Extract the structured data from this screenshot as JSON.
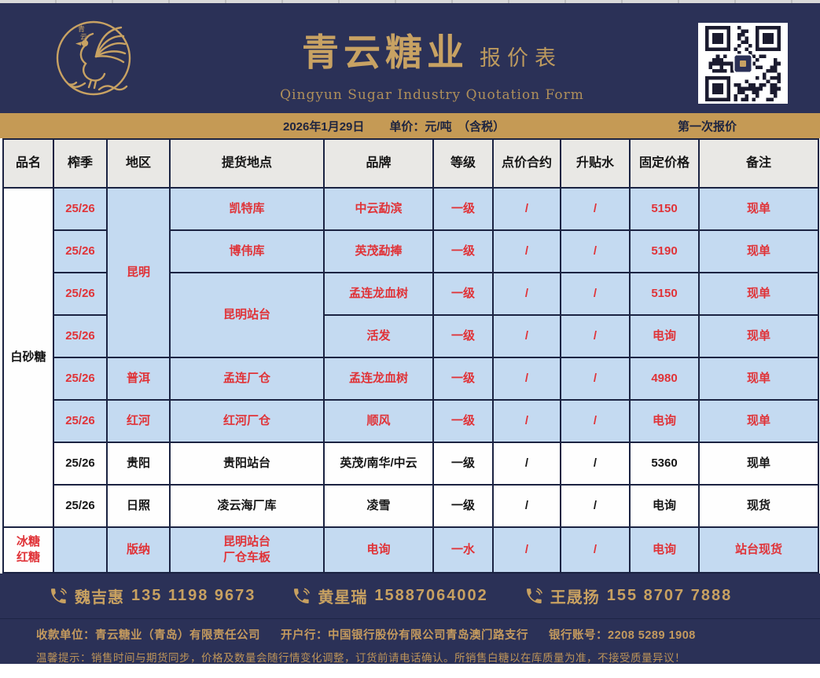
{
  "brand": {
    "logo_chars_top": "青",
    "logo_chars_bottom": "云",
    "title": "青云糖业",
    "title_suffix": "报价表",
    "subtitle": "Qingyun Sugar Industry Quotation Form",
    "accent_gold": "#c8a263",
    "navy": "#2b3157",
    "highlight_blue": "#c4daf1",
    "highlight_red": "#e03338"
  },
  "info_bar": {
    "date": "2026年1月29日",
    "unit": "单价：元/吨　（含税）",
    "round": "第一次报价"
  },
  "table": {
    "columns": [
      "品名",
      "榨季",
      "地区",
      "提货地点",
      "品牌",
      "等级",
      "点价合约",
      "升贴水",
      "固定价格",
      "备注"
    ],
    "rows": [
      {
        "cells": [
          {
            "text": "白砂糖",
            "rs": 8,
            "style": "name"
          },
          {
            "text": "25/26",
            "style": "hl"
          },
          {
            "text": "昆明",
            "rs": 4,
            "style": "hl"
          },
          {
            "text": "凯特库",
            "style": "hl"
          },
          {
            "text": "中云勐滨",
            "style": "hl"
          },
          {
            "text": "一级",
            "style": "hl"
          },
          {
            "text": "/",
            "style": "hl"
          },
          {
            "text": "/",
            "style": "hl"
          },
          {
            "text": "5150",
            "style": "hl"
          },
          {
            "text": "现单",
            "style": "hl"
          }
        ]
      },
      {
        "cells": [
          {
            "text": "25/26",
            "style": "hl"
          },
          {
            "text": "博伟库",
            "style": "hl"
          },
          {
            "text": "英茂勐捧",
            "style": "hl"
          },
          {
            "text": "一级",
            "style": "hl"
          },
          {
            "text": "/",
            "style": "hl"
          },
          {
            "text": "/",
            "style": "hl"
          },
          {
            "text": "5190",
            "style": "hl"
          },
          {
            "text": "现单",
            "style": "hl"
          }
        ]
      },
      {
        "cells": [
          {
            "text": "25/26",
            "style": "hl"
          },
          {
            "text": "昆明站台",
            "rs": 2,
            "style": "hl"
          },
          {
            "text": "孟连龙血树",
            "style": "hl"
          },
          {
            "text": "一级",
            "style": "hl"
          },
          {
            "text": "/",
            "style": "hl"
          },
          {
            "text": "/",
            "style": "hl"
          },
          {
            "text": "5150",
            "style": "hl"
          },
          {
            "text": "现单",
            "style": "hl"
          }
        ]
      },
      {
        "cells": [
          {
            "text": "25/26",
            "style": "hl"
          },
          {
            "text": "活发",
            "style": "hl"
          },
          {
            "text": "一级",
            "style": "hl"
          },
          {
            "text": "/",
            "style": "hl"
          },
          {
            "text": "/",
            "style": "hl"
          },
          {
            "text": "电询",
            "style": "hl"
          },
          {
            "text": "现单",
            "style": "hl"
          }
        ]
      },
      {
        "cells": [
          {
            "text": "25/26",
            "style": "hl"
          },
          {
            "text": "普洱",
            "style": "hl"
          },
          {
            "text": "孟连厂仓",
            "style": "hl"
          },
          {
            "text": "孟连龙血树",
            "style": "hl"
          },
          {
            "text": "一级",
            "style": "hl"
          },
          {
            "text": "/",
            "style": "hl"
          },
          {
            "text": "/",
            "style": "hl"
          },
          {
            "text": "4980",
            "style": "hl"
          },
          {
            "text": "现单",
            "style": "hl"
          }
        ]
      },
      {
        "cells": [
          {
            "text": "25/26",
            "style": "hl"
          },
          {
            "text": "红河",
            "style": "hl"
          },
          {
            "text": "红河厂仓",
            "style": "hl"
          },
          {
            "text": "顺风",
            "style": "hl"
          },
          {
            "text": "一级",
            "style": "hl"
          },
          {
            "text": "/",
            "style": "hl"
          },
          {
            "text": "/",
            "style": "hl"
          },
          {
            "text": "电询",
            "style": "hl"
          },
          {
            "text": "现单",
            "style": "hl"
          }
        ]
      },
      {
        "cells": [
          {
            "text": "25/26",
            "style": "plain"
          },
          {
            "text": "贵阳",
            "style": "plain"
          },
          {
            "text": "贵阳站台",
            "style": "plain"
          },
          {
            "text": "英茂/南华/中云",
            "style": "plain"
          },
          {
            "text": "一级",
            "style": "plain"
          },
          {
            "text": "/",
            "style": "plain"
          },
          {
            "text": "/",
            "style": "plain"
          },
          {
            "text": "5360",
            "style": "plain"
          },
          {
            "text": "现单",
            "style": "plain"
          }
        ]
      },
      {
        "cells": [
          {
            "text": "25/26",
            "style": "plain"
          },
          {
            "text": "日照",
            "style": "plain"
          },
          {
            "text": "凌云海厂库",
            "style": "plain"
          },
          {
            "text": "凌雪",
            "style": "plain"
          },
          {
            "text": "一级",
            "style": "plain"
          },
          {
            "text": "/",
            "style": "plain"
          },
          {
            "text": "/",
            "style": "plain"
          },
          {
            "text": "电询",
            "style": "plain"
          },
          {
            "text": "现货",
            "style": "plain"
          }
        ]
      },
      {
        "last": true,
        "cells": [
          {
            "text": "冰糖\n红糖",
            "style": "name-red"
          },
          {
            "text": "",
            "style": "hl"
          },
          {
            "text": "版纳",
            "style": "hl"
          },
          {
            "text": "昆明站台\n厂仓车板",
            "style": "hl"
          },
          {
            "text": "电询",
            "style": "hl"
          },
          {
            "text": "一水",
            "style": "hl"
          },
          {
            "text": "/",
            "style": "hl"
          },
          {
            "text": "/",
            "style": "hl"
          },
          {
            "text": "电询",
            "style": "hl"
          },
          {
            "text": "站台现货",
            "style": "hl"
          }
        ]
      }
    ]
  },
  "contacts": [
    {
      "name": "魏吉惠",
      "phone": "135 1198 9673"
    },
    {
      "name": "黄星瑞",
      "phone": "15887064002"
    },
    {
      "name": "王晟扬",
      "phone": "155 8707 7888"
    }
  ],
  "footer": {
    "payee": "收款单位：青云糖业（青岛）有限责任公司",
    "bank": "开户行：中国银行股份有限公司青岛澳门路支行",
    "account": "银行账号：2208 5289 1908",
    "notice": "温馨提示：销售时间与期货同步，价格及数量会随行情变化调整，订货前请电话确认。所销售白糖以在库质量为准，不接受质量异议！"
  }
}
